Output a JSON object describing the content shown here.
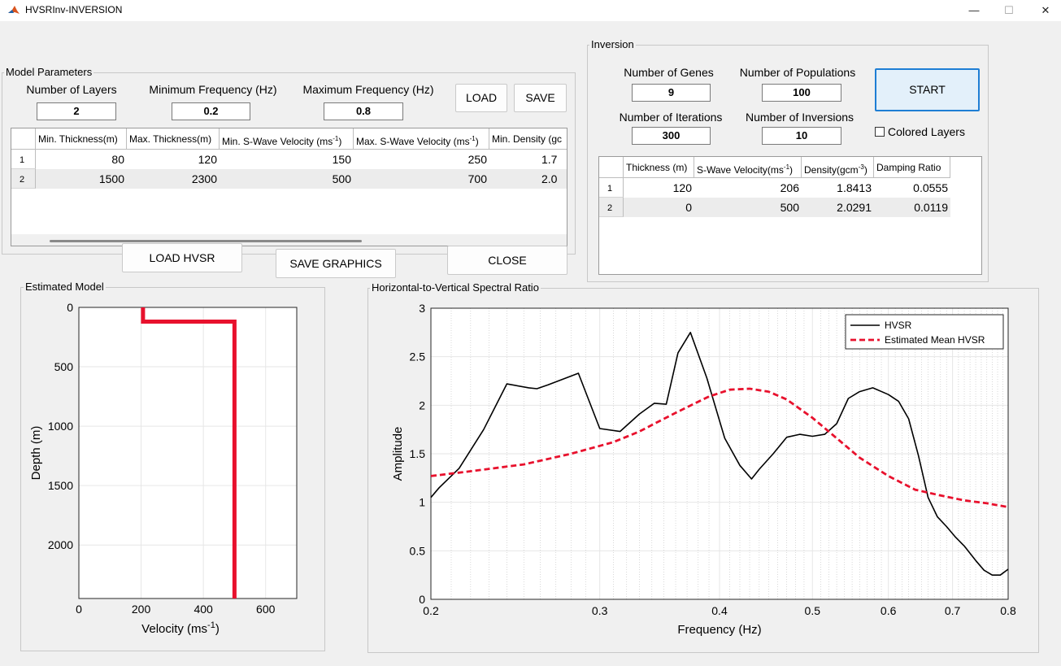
{
  "window": {
    "title": "HVSRInv-INVERSION",
    "controls": {
      "minimize": "—",
      "maximize": "☐",
      "close": "✕"
    }
  },
  "model_parameters": {
    "title": "Model Parameters",
    "num_layers_label": "Number of Layers",
    "num_layers_value": "2",
    "min_freq_label": "Minimum Frequency (Hz)",
    "min_freq_value": "0.2",
    "max_freq_label": "Maximum Frequency (Hz)",
    "max_freq_value": "0.8",
    "load_label": "LOAD",
    "save_label": "SAVE",
    "table": {
      "headers": [
        "Min. Thickness(m)",
        "Max. Thickness(m)",
        "Min. S-Wave Velocity (ms",
        "Max. S-Wave Velocity (ms",
        "Min. Density (gc"
      ],
      "unit_suffix": "-1",
      "close_paren": ")",
      "rows": [
        {
          "index": "1",
          "cells": [
            "80",
            "120",
            "150",
            "250",
            "1.7"
          ]
        },
        {
          "index": "2",
          "cells": [
            "1500",
            "2300",
            "500",
            "700",
            "2.0"
          ]
        }
      ]
    }
  },
  "buttons": {
    "load_hvsr": "LOAD HVSR",
    "save_graphics": "SAVE GRAPHICS",
    "close": "CLOSE"
  },
  "inversion": {
    "title": "Inversion",
    "genes_label": "Number of Genes",
    "genes_value": "9",
    "populations_label": "Number of Populations",
    "populations_value": "100",
    "iterations_label": "Number of Iterations",
    "iterations_value": "300",
    "inversions_label": "Number of Inversions",
    "inversions_value": "10",
    "start_label": "START",
    "colored_layers_label": "Colored Layers",
    "table": {
      "headers": {
        "thickness": "Thickness (m)",
        "vs_main": "S-Wave Velocity(ms",
        "vs_sup": "-1",
        "vs_close": ")",
        "den_main": "Density(gcm",
        "den_sup": "-3",
        "den_close": ")",
        "damping": "Damping Ratio"
      },
      "rows": [
        {
          "index": "1",
          "cells": [
            "120",
            "206",
            "1.8413",
            "0.0555"
          ]
        },
        {
          "index": "2",
          "cells": [
            "0",
            "500",
            "2.0291",
            "0.0119"
          ]
        }
      ]
    }
  },
  "colors": {
    "hvsr": "#000000",
    "estimated": "#e8112d",
    "grid": "#e6e6e6"
  },
  "chart_data": [
    {
      "type": "line",
      "panel_title": "Estimated Model",
      "xlabel": "Velocity (ms",
      "xlabel_sup": "-1",
      "xlabel_close": ")",
      "ylabel": "Depth (m)",
      "xlim": [
        0,
        700
      ],
      "ylim": [
        0,
        2450
      ],
      "y_reversed": true,
      "xticks": [
        0,
        200,
        400,
        600
      ],
      "yticks": [
        0,
        500,
        1000,
        1500,
        2000
      ],
      "grid": true,
      "series": [
        {
          "x": [
            206,
            206,
            500,
            500
          ],
          "y": [
            0,
            120,
            120,
            2450
          ]
        }
      ]
    },
    {
      "type": "line",
      "panel_title": "Horizontal-to-Vertical Spectral Ratio",
      "xlabel": "Frequency (Hz)",
      "ylabel": "Amplitude",
      "x_scale": "log",
      "xlim": [
        0.2,
        0.8
      ],
      "ylim": [
        0,
        3
      ],
      "xticks": [
        0.2,
        0.3,
        0.4,
        0.5,
        0.6,
        0.7,
        0.8
      ],
      "yticks": [
        0,
        0.5,
        1,
        1.5,
        2,
        2.5,
        3
      ],
      "grid": true,
      "legend_position": "top-right",
      "series": [
        {
          "name": "HVSR",
          "style": "solid",
          "x": [
            0.2,
            0.204,
            0.214,
            0.227,
            0.24,
            0.253,
            0.258,
            0.265,
            0.285,
            0.3,
            0.315,
            0.33,
            0.342,
            0.352,
            0.362,
            0.373,
            0.388,
            0.405,
            0.42,
            0.432,
            0.44,
            0.455,
            0.47,
            0.485,
            0.5,
            0.515,
            0.53,
            0.545,
            0.56,
            0.578,
            0.6,
            0.615,
            0.63,
            0.645,
            0.66,
            0.675,
            0.69,
            0.705,
            0.72,
            0.74,
            0.755,
            0.77,
            0.785,
            0.8
          ],
          "y": [
            1.05,
            1.15,
            1.35,
            1.75,
            2.22,
            2.18,
            2.17,
            2.21,
            2.33,
            1.76,
            1.73,
            1.91,
            2.02,
            2.01,
            2.54,
            2.75,
            2.28,
            1.66,
            1.38,
            1.24,
            1.34,
            1.5,
            1.67,
            1.7,
            1.68,
            1.7,
            1.81,
            2.07,
            2.14,
            2.18,
            2.11,
            2.04,
            1.86,
            1.48,
            1.05,
            0.85,
            0.75,
            0.64,
            0.55,
            0.4,
            0.3,
            0.25,
            0.25,
            0.31
          ]
        },
        {
          "name": "Estimated Mean HVSR",
          "style": "dashed",
          "x": [
            0.2,
            0.22,
            0.25,
            0.28,
            0.31,
            0.33,
            0.35,
            0.37,
            0.39,
            0.41,
            0.43,
            0.45,
            0.47,
            0.5,
            0.53,
            0.56,
            0.6,
            0.64,
            0.68,
            0.72,
            0.76,
            0.8
          ],
          "y": [
            1.27,
            1.32,
            1.39,
            1.5,
            1.62,
            1.73,
            1.86,
            1.98,
            2.09,
            2.16,
            2.17,
            2.14,
            2.06,
            1.87,
            1.66,
            1.46,
            1.27,
            1.13,
            1.07,
            1.02,
            0.99,
            0.95
          ]
        }
      ]
    }
  ]
}
